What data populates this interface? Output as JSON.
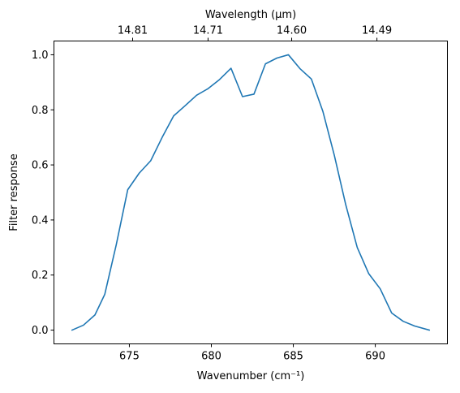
{
  "chart_data": {
    "type": "line",
    "xlabel": "Wavenumber (cm⁻¹)",
    "ylabel": "Filter response",
    "top_xlabel": "Wavelength (μm)",
    "xlim": [
      670.4,
      694.4
    ],
    "ylim": [
      -0.05,
      1.05
    ],
    "x_ticks": [
      675,
      680,
      685,
      690
    ],
    "x_tick_labels": [
      "675",
      "680",
      "685",
      "690"
    ],
    "y_ticks": [
      0.0,
      0.2,
      0.4,
      0.6,
      0.8,
      1.0
    ],
    "y_tick_labels": [
      "0.0",
      "0.2",
      "0.4",
      "0.6",
      "0.8",
      "1.0"
    ],
    "top_ticks": [
      675.2,
      679.8,
      684.9,
      690.1
    ],
    "top_tick_labels": [
      "14.81",
      "14.71",
      "14.60",
      "14.49"
    ],
    "grid": false,
    "series": [
      {
        "color": "#1f77b4",
        "x": [
          671.5,
          672.2,
          672.9,
          673.5,
          674.2,
          674.9,
          675.6,
          676.3,
          677.0,
          677.7,
          678.4,
          679.1,
          679.8,
          680.5,
          681.2,
          681.9,
          682.6,
          683.3,
          684.0,
          684.7,
          685.4,
          686.1,
          686.8,
          687.5,
          688.2,
          688.9,
          689.6,
          690.3,
          691.0,
          691.7,
          692.4,
          693.3
        ],
        "y": [
          0.0,
          0.018,
          0.055,
          0.13,
          0.31,
          0.51,
          0.57,
          0.615,
          0.7,
          0.778,
          0.815,
          0.853,
          0.877,
          0.91,
          0.951,
          0.848,
          0.857,
          0.967,
          0.988,
          1.0,
          0.95,
          0.912,
          0.795,
          0.635,
          0.455,
          0.3,
          0.205,
          0.15,
          0.062,
          0.032,
          0.015,
          0.0
        ]
      }
    ]
  }
}
